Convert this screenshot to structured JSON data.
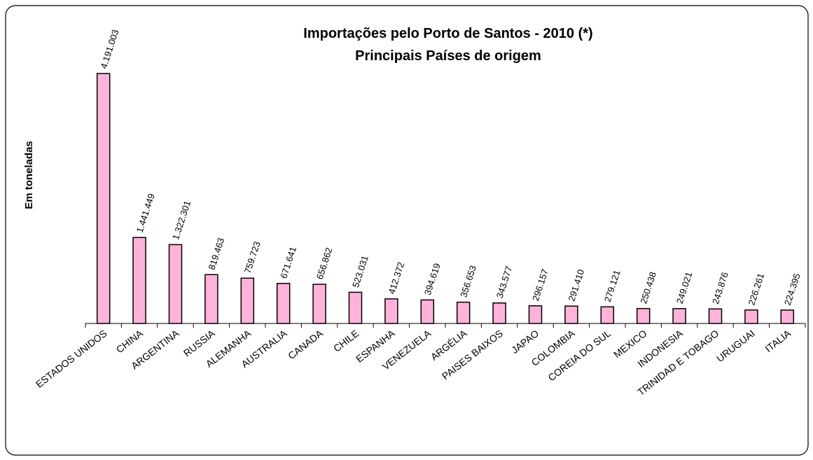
{
  "chart_data": {
    "type": "bar",
    "title": "Importações pelo Porto de Santos - 2010 (*)",
    "subtitle": "Principais Países de origem",
    "y_label": "Em toneladas",
    "color": "#ffb3da",
    "categories": [
      "ESTADOS UNIDOS",
      "CHINA",
      "ARGENTINA",
      "RUSSIA",
      "ALEMANHA",
      "AUSTRALIA",
      "CANADA",
      "CHILE",
      "ESPANHA",
      "VENEZUELA",
      "ARGÉLIA",
      "PAISES BAIXOS",
      "JAPAO",
      "COLOMBIA",
      "COREIA DO SUL",
      "MEXICO",
      "INDONESIA",
      "TRINIDAD E TOBAGO",
      "URUGUAI",
      "ITALIA"
    ],
    "values": [
      4191003,
      1441449,
      1322301,
      819463,
      759723,
      671641,
      656862,
      523031,
      412372,
      394619,
      356653,
      343577,
      296157,
      291410,
      279121,
      250438,
      249021,
      243876,
      226261,
      224395
    ],
    "value_labels": [
      "4.191.003",
      "1.441.449",
      "1.322.301",
      "819.463",
      "759.723",
      "671.641",
      "656.862",
      "523.031",
      "412.372",
      "394.619",
      "356.653",
      "343.577",
      "296.157",
      "291.410",
      "279.121",
      "250.438",
      "249.021",
      "243.876",
      "226.261",
      "224.395"
    ]
  }
}
